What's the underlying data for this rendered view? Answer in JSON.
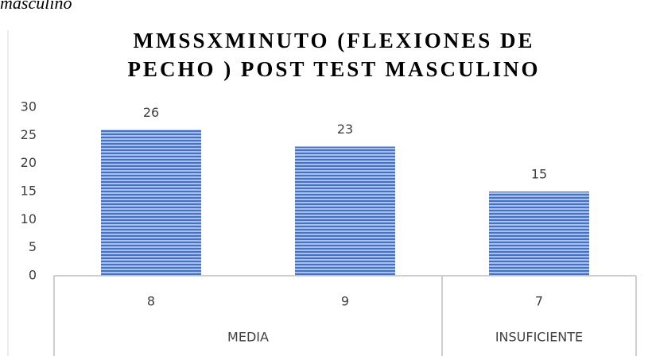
{
  "caption": "masculino",
  "chart_data": {
    "type": "bar",
    "title": [
      "MMSSXMINUTO (FLEXIONES DE",
      "PECHO ) POST TEST MASCULINO"
    ],
    "groups": [
      {
        "name": "MEDIA",
        "categories": [
          "8",
          "9"
        ],
        "values": [
          26,
          23
        ]
      },
      {
        "name": "INSUFICIENTE",
        "categories": [
          "7"
        ],
        "values": [
          15
        ]
      }
    ],
    "color": "#4472c4",
    "ylim": [
      0,
      30
    ],
    "yticks": [
      0,
      5,
      10,
      15,
      20,
      25,
      30
    ],
    "grid": false,
    "data_labels": true
  }
}
